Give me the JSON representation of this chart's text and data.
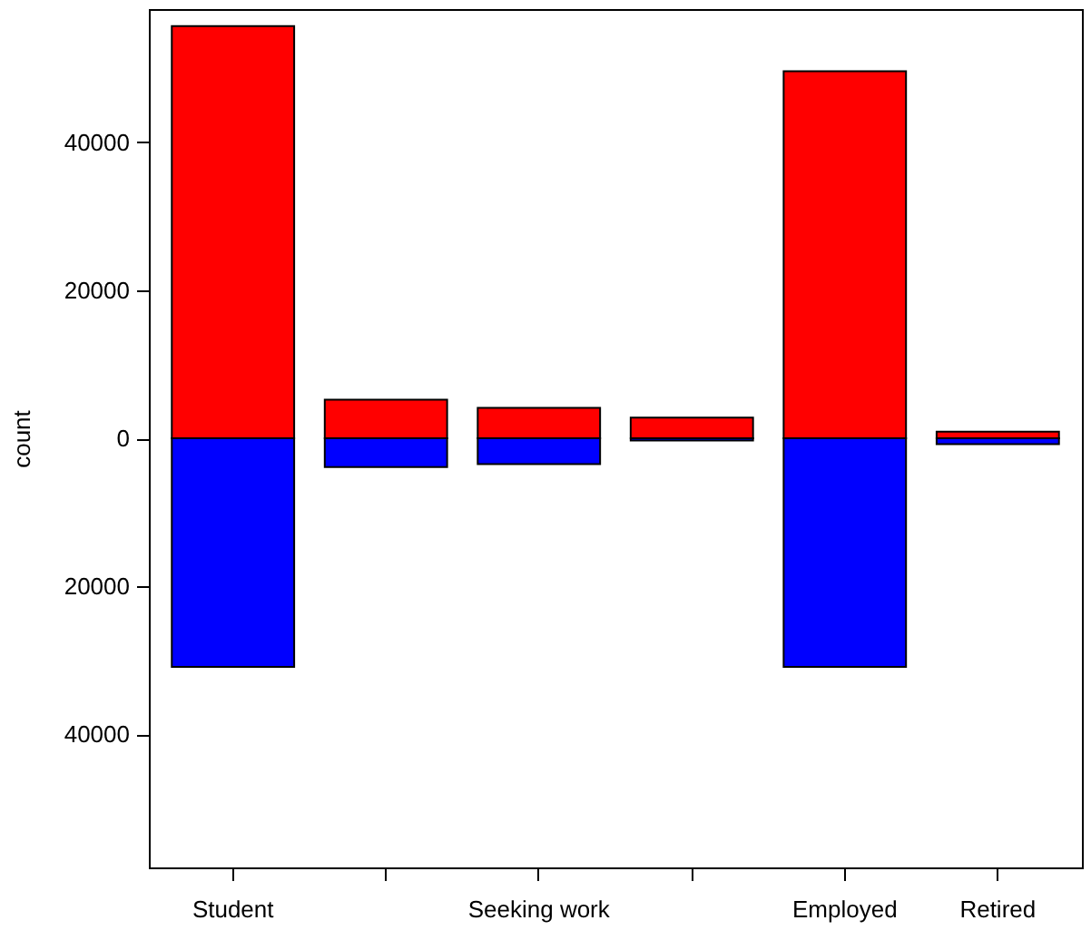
{
  "chart_data": {
    "type": "bar",
    "ylabel": "count",
    "stacked": true,
    "categories": [
      "Student",
      null,
      "Seeking work",
      null,
      "Employed",
      "Retired"
    ],
    "series": [
      {
        "color": "#ff0000",
        "values": [
          55700,
          5200,
          4100,
          2800,
          49600,
          900
        ]
      },
      {
        "color": "#0000ff",
        "values": [
          -30900,
          -3900,
          -3500,
          -300,
          -30900,
          -800
        ]
      }
    ],
    "ylim": [
      -58000,
      58000
    ],
    "yticks": [
      {
        "value": -40000,
        "label": "40000"
      },
      {
        "value": -20000,
        "label": "20000"
      },
      0,
      20000,
      40000
    ],
    "grid": false,
    "legend": false
  }
}
